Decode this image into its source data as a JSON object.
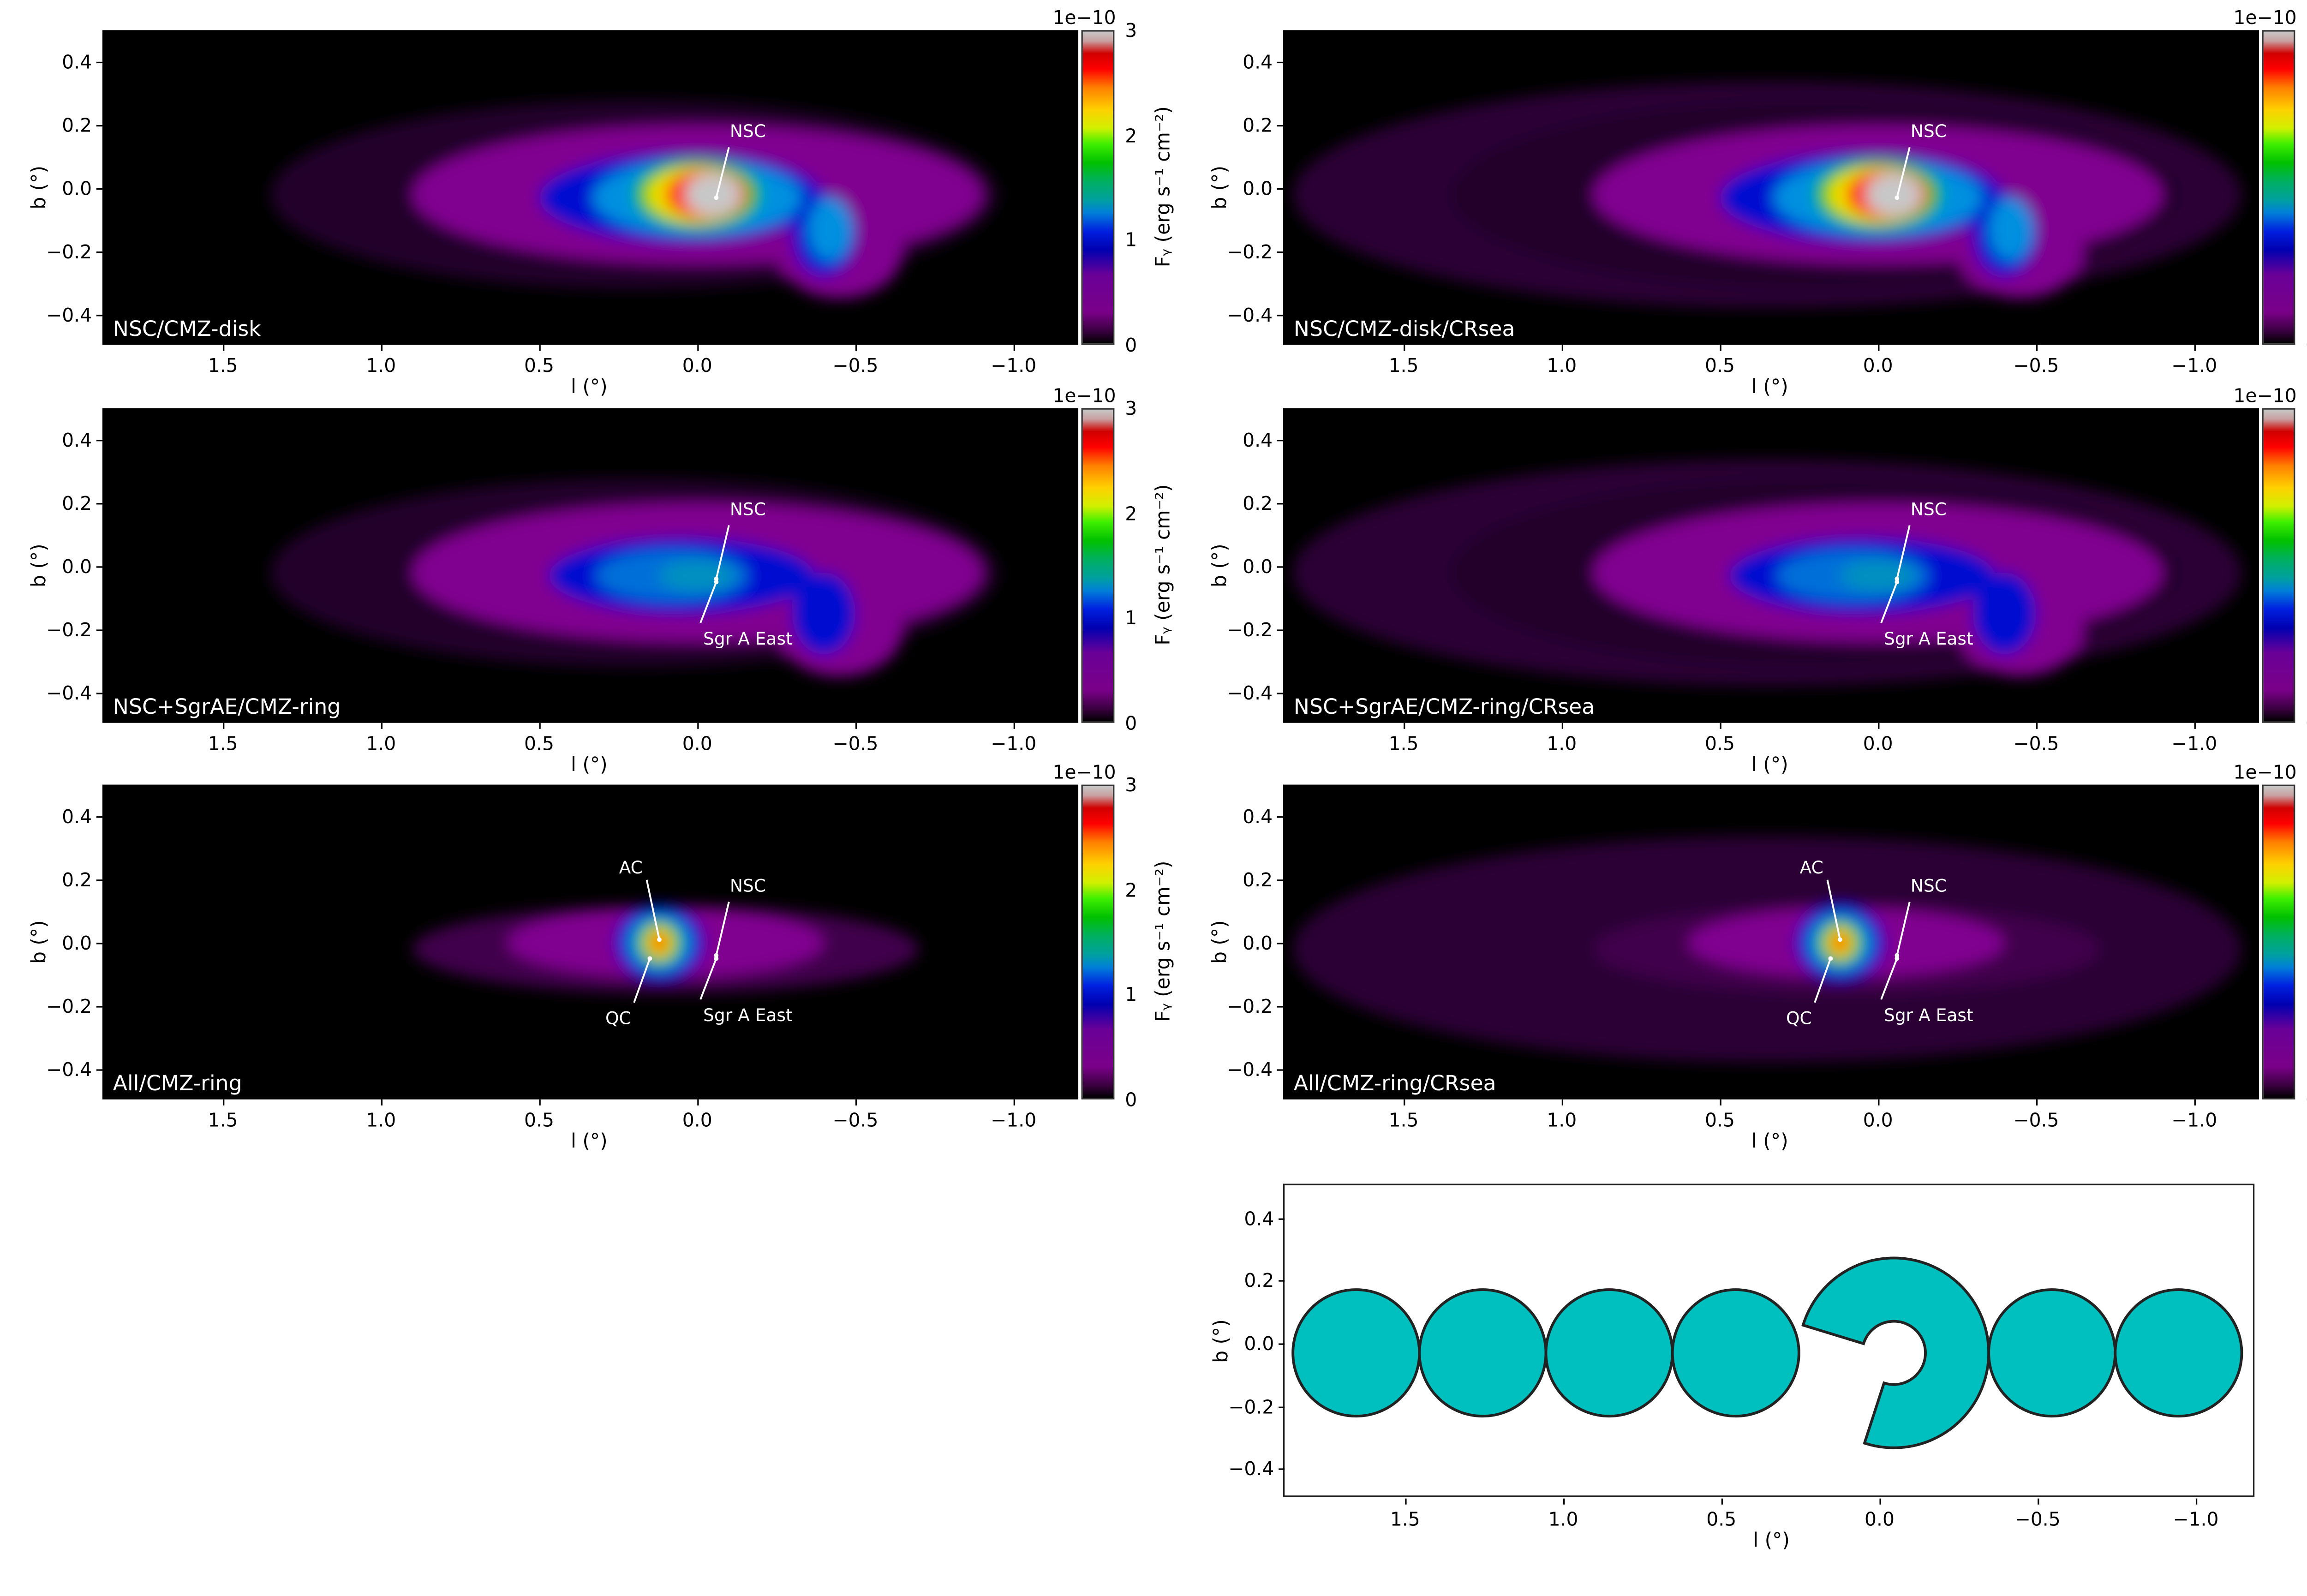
{
  "chart_data": [
    {
      "type": "heatmap",
      "colormap": "nipy_spectral",
      "x_axis": {
        "label": "l (°)",
        "range": [
          1.88,
          -1.2
        ],
        "ticks": [
          "1.5",
          "1.0",
          "0.5",
          "0.0",
          "−0.5",
          "−1.0"
        ],
        "tick_values": [
          1.5,
          1.0,
          0.5,
          0.0,
          -0.5,
          -1.0
        ]
      },
      "y_axis": {
        "label": "b (°)",
        "range": [
          -0.5,
          0.5
        ],
        "ticks": [
          "0.4",
          "0.2",
          "0.0",
          "−0.2",
          "−0.4"
        ],
        "tick_values": [
          0.4,
          0.2,
          0.0,
          -0.2,
          -0.4
        ]
      },
      "colorbar": {
        "label": "Fᵧ (erg s⁻¹ cm⁻²)",
        "exponent": "1e−10",
        "range": [
          0,
          3
        ],
        "ticks": [
          "0",
          "1",
          "2",
          "3"
        ],
        "tick_values": [
          0,
          1,
          2,
          3
        ]
      },
      "panels": [
        {
          "label": "NSC/CMZ-disk",
          "model": "disk",
          "crsea": false,
          "annotations": [
            {
              "text": "NSC",
              "text_at": [
                -0.16,
                0.18
              ],
              "from": [
                -0.1,
                0.13
              ],
              "to": [
                -0.06,
                -0.03
              ]
            }
          ]
        },
        {
          "label": "NSC/CMZ-disk/CRsea",
          "model": "disk",
          "crsea": true,
          "annotations": [
            {
              "text": "NSC",
              "text_at": [
                -0.16,
                0.18
              ],
              "from": [
                -0.1,
                0.13
              ],
              "to": [
                -0.06,
                -0.03
              ]
            }
          ]
        },
        {
          "label": "NSC+SgrAE/CMZ-ring",
          "model": "ring",
          "crsea": false,
          "annotations": [
            {
              "text": "NSC",
              "text_at": [
                -0.16,
                0.18
              ],
              "from": [
                -0.1,
                0.13
              ],
              "to": [
                -0.06,
                -0.04
              ]
            },
            {
              "text": "Sgr A East",
              "text_at": [
                -0.16,
                -0.23
              ],
              "from": [
                -0.01,
                -0.18
              ],
              "to": [
                -0.06,
                -0.05
              ]
            }
          ]
        },
        {
          "label": "NSC+SgrAE/CMZ-ring/CRsea",
          "model": "ring",
          "crsea": true,
          "annotations": [
            {
              "text": "NSC",
              "text_at": [
                -0.16,
                0.18
              ],
              "from": [
                -0.1,
                0.13
              ],
              "to": [
                -0.06,
                -0.04
              ]
            },
            {
              "text": "Sgr A East",
              "text_at": [
                -0.16,
                -0.23
              ],
              "from": [
                -0.01,
                -0.18
              ],
              "to": [
                -0.06,
                -0.05
              ]
            }
          ]
        },
        {
          "label": "All/CMZ-ring",
          "model": "all",
          "crsea": false,
          "annotations": [
            {
              "text": "AC",
              "text_at": [
                0.21,
                0.24
              ],
              "from": [
                0.16,
                0.2
              ],
              "to": [
                0.12,
                0.01
              ]
            },
            {
              "text": "QC",
              "text_at": [
                0.25,
                -0.24
              ],
              "from": [
                0.2,
                -0.19
              ],
              "to": [
                0.15,
                -0.05
              ]
            },
            {
              "text": "NSC",
              "text_at": [
                -0.16,
                0.18
              ],
              "from": [
                -0.1,
                0.13
              ],
              "to": [
                -0.06,
                -0.04
              ]
            },
            {
              "text": "Sgr A East",
              "text_at": [
                -0.16,
                -0.23
              ],
              "from": [
                -0.01,
                -0.18
              ],
              "to": [
                -0.06,
                -0.05
              ]
            }
          ]
        },
        {
          "label": "All/CMZ-ring/CRsea",
          "model": "all",
          "crsea": true,
          "annotations": [
            {
              "text": "AC",
              "text_at": [
                0.21,
                0.24
              ],
              "from": [
                0.16,
                0.2
              ],
              "to": [
                0.12,
                0.01
              ]
            },
            {
              "text": "QC",
              "text_at": [
                0.25,
                -0.24
              ],
              "from": [
                0.2,
                -0.19
              ],
              "to": [
                0.15,
                -0.05
              ]
            },
            {
              "text": "NSC",
              "text_at": [
                -0.16,
                0.18
              ],
              "from": [
                -0.1,
                0.13
              ],
              "to": [
                -0.06,
                -0.04
              ]
            },
            {
              "text": "Sgr A East",
              "text_at": [
                -0.16,
                -0.23
              ],
              "from": [
                -0.01,
                -0.18
              ],
              "to": [
                -0.06,
                -0.05
              ]
            }
          ]
        }
      ]
    },
    {
      "type": "shapes",
      "x_axis": {
        "label": "l (°)",
        "range": [
          1.88,
          -1.2
        ],
        "ticks": [
          "1.5",
          "1.0",
          "0.5",
          "0.0",
          "−0.5",
          "−1.0"
        ],
        "tick_values": [
          1.5,
          1.0,
          0.5,
          0.0,
          -0.5,
          -1.0
        ]
      },
      "y_axis": {
        "label": "b (°)",
        "range": [
          -0.5,
          0.5
        ],
        "ticks": [
          "0.4",
          "0.2",
          "0.0",
          "−0.2",
          "−0.4"
        ],
        "tick_values": [
          0.4,
          0.2,
          0.0,
          -0.2,
          -0.4
        ]
      },
      "fill_color": "#00bfbf",
      "circles": [
        {
          "l": 1.65,
          "b": -0.04,
          "r": 0.2
        },
        {
          "l": 1.25,
          "b": -0.04,
          "r": 0.2
        },
        {
          "l": 0.85,
          "b": -0.04,
          "r": 0.2
        },
        {
          "l": 0.45,
          "b": -0.04,
          "r": 0.2
        },
        {
          "l": -0.55,
          "b": -0.04,
          "r": 0.2
        },
        {
          "l": -0.95,
          "b": -0.04,
          "r": 0.2
        }
      ],
      "ring": {
        "l": -0.05,
        "b": -0.04,
        "r_outer": 0.3,
        "r_inner": 0.1,
        "gap_angles_deg": [
          163,
          252
        ]
      }
    }
  ]
}
